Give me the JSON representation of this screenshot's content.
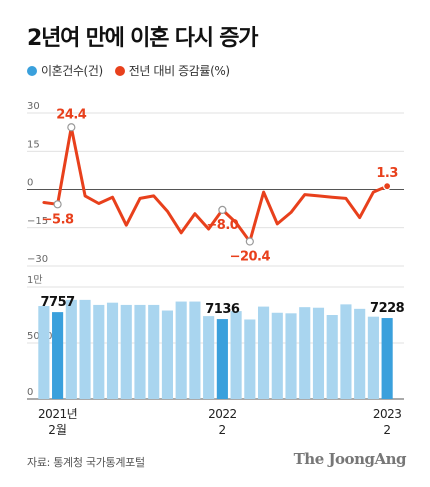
{
  "title": "2년여 만에 이혼 다시 증가",
  "legend": [
    {
      "label": "이혼건수(건)",
      "color": "#3aa0dc"
    },
    {
      "label": "전년 대비 증감률(%)",
      "color": "#e8401c"
    }
  ],
  "source": "자료: 통계청 국가통계포털",
  "brand": "The JoongAng",
  "chart_data": {
    "type": "bar+line",
    "x": [
      "2021-01",
      "2021-02",
      "2021-03",
      "2021-04",
      "2021-05",
      "2021-06",
      "2021-07",
      "2021-08",
      "2021-09",
      "2021-10",
      "2021-11",
      "2021-12",
      "2022-01",
      "2022-02",
      "2022-03",
      "2022-04",
      "2022-05",
      "2022-06",
      "2022-07",
      "2022-08",
      "2022-09",
      "2022-10",
      "2022-11",
      "2022-12",
      "2023-01",
      "2023-02"
    ],
    "x_tick_labels": [
      {
        "index": 1,
        "line1": "2021년",
        "line2": "2월"
      },
      {
        "index": 13,
        "line1": "2022",
        "line2": "2"
      },
      {
        "index": 25,
        "line1": "2023",
        "line2": "2"
      }
    ],
    "series": [
      {
        "name": "전년 대비 증감률(%)",
        "type": "line",
        "color": "#e8401c",
        "values": [
          -5.1,
          -5.8,
          24.4,
          -2.5,
          -5.5,
          -3.0,
          -14.0,
          -3.5,
          -2.5,
          -8.5,
          -17.0,
          -9.5,
          -15.5,
          -8.0,
          -13.0,
          -20.4,
          -1.0,
          -13.5,
          -9.0,
          -2.0,
          -2.5,
          -3.0,
          -3.5,
          -11.0,
          -1.0,
          1.3
        ],
        "labels": [
          {
            "index": 1,
            "text": "−5.8",
            "pos": "below"
          },
          {
            "index": 2,
            "text": "24.4",
            "pos": "above"
          },
          {
            "index": 13,
            "text": "−8.0",
            "pos": "below"
          },
          {
            "index": 15,
            "text": "−20.4",
            "pos": "below"
          },
          {
            "index": 25,
            "text": "1.3",
            "pos": "above"
          }
        ],
        "ylim": [
          -30,
          30
        ],
        "yticks": [
          30,
          15,
          0,
          -15,
          -30
        ],
        "ytick_labels": [
          "30",
          "15",
          "0",
          "−15",
          "−30"
        ]
      },
      {
        "name": "이혼건수(건)",
        "type": "bar",
        "color": "#a9d5ef",
        "highlight_color": "#3aa0dc",
        "highlight_indices": [
          1,
          13,
          25
        ],
        "values": [
          8300,
          7757,
          8850,
          8850,
          8400,
          8600,
          8400,
          8400,
          8400,
          7900,
          8700,
          8700,
          7400,
          7136,
          7850,
          7100,
          8250,
          7700,
          7650,
          8200,
          8150,
          7500,
          8450,
          8050,
          7350,
          7228
        ],
        "labels": [
          {
            "index": 1,
            "text": "7757"
          },
          {
            "index": 13,
            "text": "7136"
          },
          {
            "index": 25,
            "text": "7228"
          }
        ],
        "ylim": [
          0,
          10000
        ],
        "yticks": [
          10000,
          5000,
          0
        ],
        "ytick_labels": [
          "1만",
          "5000",
          "0"
        ]
      }
    ]
  }
}
